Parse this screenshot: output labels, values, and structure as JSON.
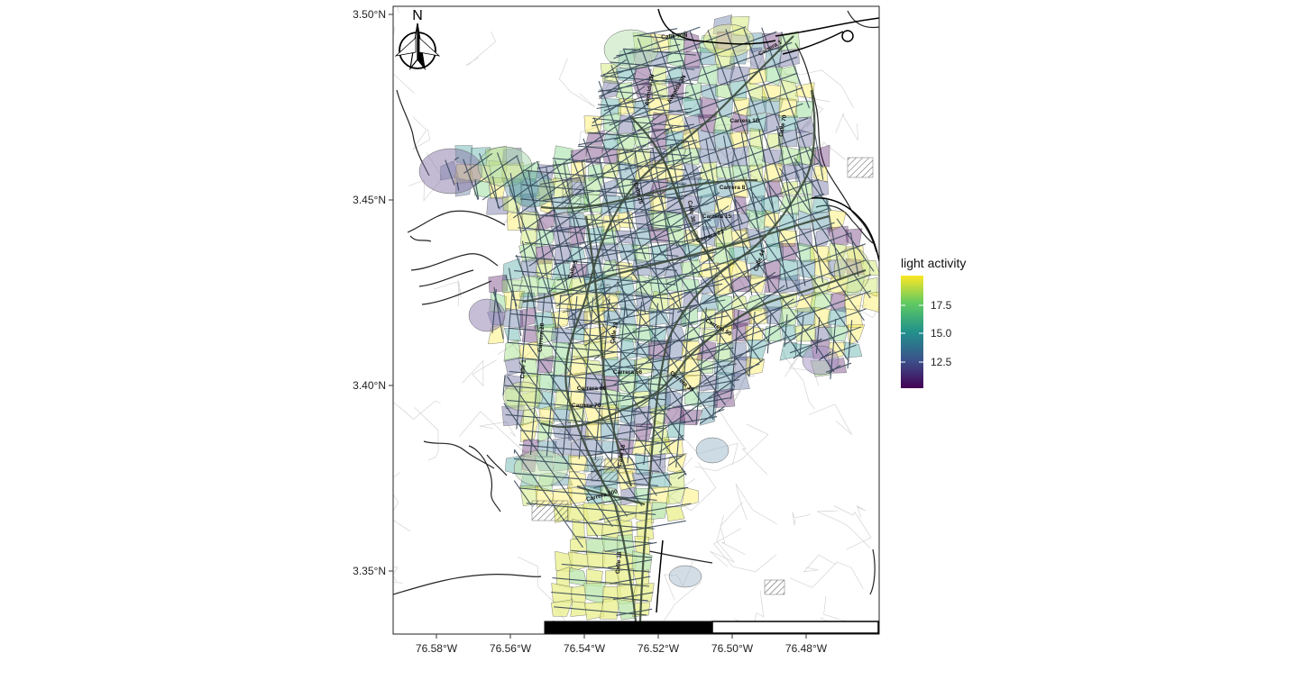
{
  "map": {
    "x_ticks": [
      "76.58°W",
      "76.56°W",
      "76.54°W",
      "76.52°W",
      "76.50°W",
      "76.48°W"
    ],
    "y_ticks": [
      "3.50°N",
      "3.45°N",
      "3.40°N",
      "3.35°N"
    ],
    "north_label": "N",
    "legend": {
      "title": "light activity",
      "ticks": [
        "17.5",
        "15.0",
        "12.5"
      ],
      "colors": [
        "#440154",
        "#3b528b",
        "#21918c",
        "#5ec962",
        "#fde725"
      ]
    },
    "street_labels": [
      "Calle 70N",
      "Carrera 1",
      "Avenida 3N",
      "Avenida 2N",
      "Carrera 1D",
      "Calle 70",
      "Carrera 8",
      "Calle 25",
      "Carrera 15",
      "Carrera 23",
      "Calle 36",
      "Calle 5",
      "Calle 13",
      "Calle 44",
      "Carrera 50",
      "Carrera 56",
      "Carrera 66",
      "Carrera 70",
      "Carrera 100",
      "Calle 16",
      "Carrera 39",
      "Carrera 28",
      "Calle 1",
      "Calle 18"
    ]
  }
}
